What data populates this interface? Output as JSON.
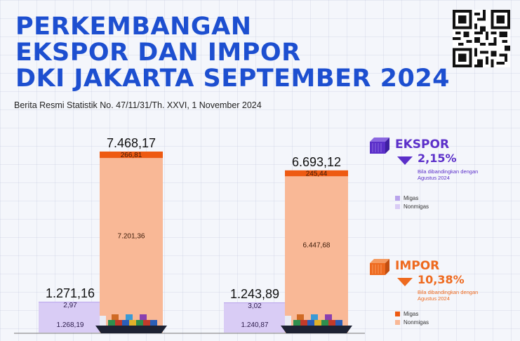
{
  "header": {
    "title_lines": [
      "PERKEMBANGAN",
      "EKSPOR DAN IMPOR",
      "DKI JAKARTA SEPTEMBER 2024"
    ],
    "subtitle": "Berita Resmi Statistik No. 47/11/31/Th. XXVI, 1 November 2024"
  },
  "colors": {
    "title": "#1d4fd0",
    "export_accent": "#5b2fc9",
    "import_accent": "#ee6a1f",
    "export_migas": "#b9a4ec",
    "export_nonmigas": "#d9ccf5",
    "import_migas": "#ee5a12",
    "import_nonmigas": "#f9b896"
  },
  "ekspor": {
    "title": "EKSPOR",
    "change": "2,15%",
    "direction": "down",
    "note": "Bila dibandingkan dengan Agustus 2024",
    "legend": [
      "Migas",
      "Nonmigas"
    ],
    "icon": "purple-container-icon"
  },
  "impor": {
    "title": "IMPOR",
    "change": "10,38%",
    "direction": "down",
    "note": "Bila dibandingkan dengan Agustus 2024",
    "legend": [
      "Migas",
      "Nonmigas"
    ],
    "icon": "orange-container-icon"
  },
  "chart_data": {
    "type": "bar",
    "stacked": true,
    "groups": [
      {
        "bars": [
          {
            "kind": "ekspor",
            "total": 1271.16,
            "total_label": "1.271,16",
            "migas": 2.97,
            "migas_label": "2,97",
            "nonmigas": 1268.19,
            "nonmigas_label": "1.268,19"
          },
          {
            "kind": "impor",
            "total": 7468.17,
            "total_label": "7.468,17",
            "migas": 266.81,
            "migas_label": "266,81",
            "nonmigas": 7201.36,
            "nonmigas_label": "7.201,36"
          }
        ]
      },
      {
        "bars": [
          {
            "kind": "ekspor",
            "total": 1243.89,
            "total_label": "1.243,89",
            "migas": 3.02,
            "migas_label": "3,02",
            "nonmigas": 1240.87,
            "nonmigas_label": "1.240,87"
          },
          {
            "kind": "impor",
            "total": 6693.12,
            "total_label": "6.693,12",
            "migas": 245.44,
            "migas_label": "245,44",
            "nonmigas": 6447.68,
            "nonmigas_label": "6.447,68"
          }
        ]
      }
    ]
  }
}
